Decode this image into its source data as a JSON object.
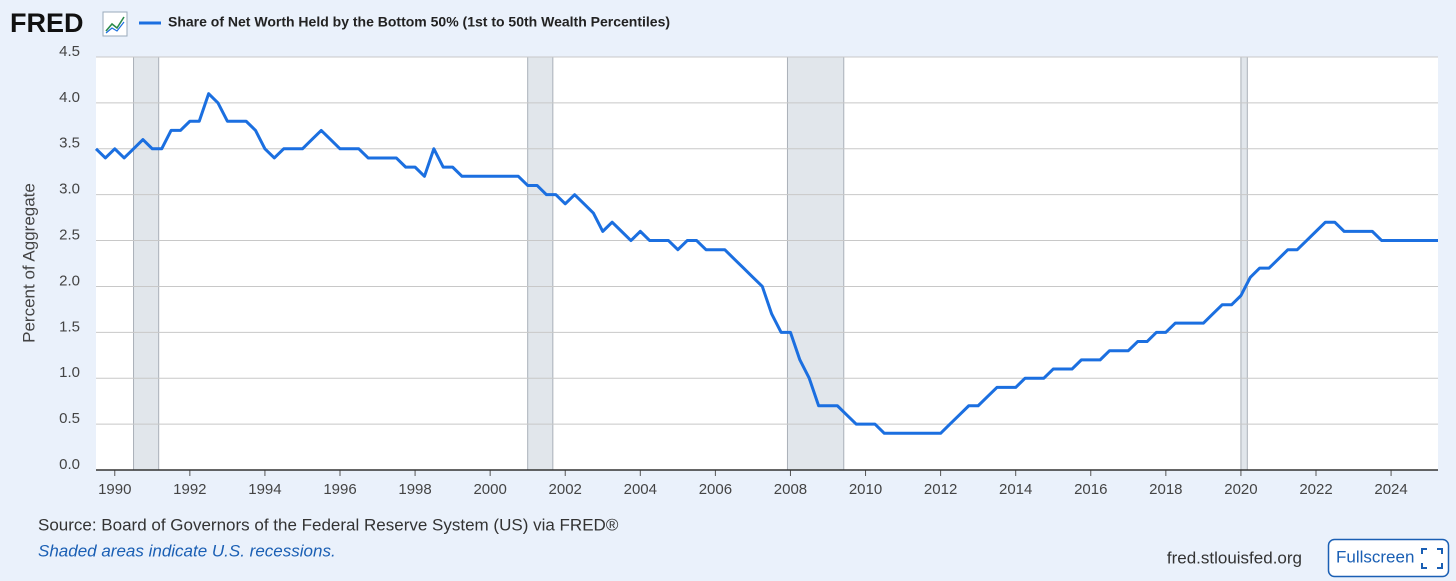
{
  "chart_data": {
    "type": "line",
    "logo": "FRED",
    "ylabel": "Percent of Aggregate",
    "source": "Source: Board of Governors of the Federal Reserve System (US) via FRED®",
    "note": "Shaded areas indicate U.S. recessions.",
    "site": "fred.stlouisfed.org",
    "button": "Fullscreen",
    "x": [
      1989.5,
      1989.75,
      1990,
      1990.25,
      1990.5,
      1990.75,
      1991,
      1991.25,
      1991.5,
      1991.75,
      1992,
      1992.25,
      1992.5,
      1992.75,
      1993,
      1993.25,
      1993.5,
      1993.75,
      1994,
      1994.25,
      1994.5,
      1994.75,
      1995,
      1995.25,
      1995.5,
      1995.75,
      1996,
      1996.25,
      1996.5,
      1996.75,
      1997,
      1997.25,
      1997.5,
      1997.75,
      1998,
      1998.25,
      1998.5,
      1998.75,
      1999,
      1999.25,
      1999.5,
      1999.75,
      2000,
      2000.25,
      2000.5,
      2000.75,
      2001,
      2001.25,
      2001.5,
      2001.75,
      2002,
      2002.25,
      2002.5,
      2002.75,
      2003,
      2003.25,
      2003.5,
      2003.75,
      2004,
      2004.25,
      2004.5,
      2004.75,
      2005,
      2005.25,
      2005.5,
      2005.75,
      2006,
      2006.25,
      2006.5,
      2006.75,
      2007,
      2007.25,
      2007.5,
      2007.75,
      2008,
      2008.25,
      2008.5,
      2008.75,
      2009,
      2009.25,
      2009.5,
      2009.75,
      2010,
      2010.25,
      2010.5,
      2010.75,
      2011,
      2011.25,
      2011.5,
      2011.75,
      2012,
      2012.25,
      2012.5,
      2012.75,
      2013,
      2013.25,
      2013.5,
      2013.75,
      2014,
      2014.25,
      2014.5,
      2014.75,
      2015,
      2015.25,
      2015.5,
      2015.75,
      2016,
      2016.25,
      2016.5,
      2016.75,
      2017,
      2017.25,
      2017.5,
      2017.75,
      2018,
      2018.25,
      2018.5,
      2018.75,
      2019,
      2019.25,
      2019.5,
      2019.75,
      2020,
      2020.25,
      2020.5,
      2020.75,
      2021,
      2021.25,
      2021.5,
      2021.75,
      2022,
      2022.25,
      2022.5,
      2022.75,
      2023,
      2023.25,
      2023.5,
      2023.75,
      2024,
      2024.25,
      2024.5,
      2024.75,
      2025,
      2025.25
    ],
    "series": [
      {
        "name": "Share of Net Worth Held by the Bottom 50% (1st to 50th Wealth Percentiles)",
        "color": "#1b6fe0",
        "values": [
          3.5,
          3.4,
          3.5,
          3.4,
          3.5,
          3.6,
          3.5,
          3.5,
          3.7,
          3.7,
          3.8,
          3.8,
          4.1,
          4.0,
          3.8,
          3.8,
          3.8,
          3.7,
          3.5,
          3.4,
          3.5,
          3.5,
          3.5,
          3.6,
          3.7,
          3.6,
          3.5,
          3.5,
          3.5,
          3.4,
          3.4,
          3.4,
          3.4,
          3.3,
          3.3,
          3.2,
          3.5,
          3.3,
          3.3,
          3.2,
          3.2,
          3.2,
          3.2,
          3.2,
          3.2,
          3.2,
          3.1,
          3.1,
          3.0,
          3.0,
          2.9,
          3.0,
          2.9,
          2.8,
          2.6,
          2.7,
          2.6,
          2.5,
          2.6,
          2.5,
          2.5,
          2.5,
          2.4,
          2.5,
          2.5,
          2.4,
          2.4,
          2.4,
          2.3,
          2.2,
          2.1,
          2.0,
          1.7,
          1.5,
          1.5,
          1.2,
          1.0,
          0.7,
          0.7,
          0.7,
          0.6,
          0.5,
          0.5,
          0.5,
          0.4,
          0.4,
          0.4,
          0.4,
          0.4,
          0.4,
          0.4,
          0.5,
          0.6,
          0.7,
          0.7,
          0.8,
          0.9,
          0.9,
          0.9,
          1.0,
          1.0,
          1.0,
          1.1,
          1.1,
          1.1,
          1.2,
          1.2,
          1.2,
          1.3,
          1.3,
          1.3,
          1.4,
          1.4,
          1.5,
          1.5,
          1.6,
          1.6,
          1.6,
          1.6,
          1.7,
          1.8,
          1.8,
          1.9,
          2.1,
          2.2,
          2.2,
          2.3,
          2.4,
          2.4,
          2.5,
          2.6,
          2.7,
          2.7,
          2.6,
          2.6,
          2.6,
          2.6,
          2.5,
          2.5,
          2.5,
          2.5,
          2.5,
          2.5,
          2.5
        ]
      }
    ],
    "recessions": [
      [
        1990.5,
        1991.17
      ],
      [
        2001.0,
        2001.67
      ],
      [
        2007.92,
        2009.42
      ],
      [
        2020.0,
        2020.17
      ]
    ],
    "recession_color": "#e1e6eb",
    "xlim": [
      1989.5,
      2025.25
    ],
    "xticks": [
      1990,
      1992,
      1994,
      1996,
      1998,
      2000,
      2002,
      2004,
      2006,
      2008,
      2010,
      2012,
      2014,
      2016,
      2018,
      2020,
      2022,
      2024
    ],
    "ylim": [
      0,
      4.5
    ],
    "yticks": [
      {
        "value": 0,
        "label": "0.0"
      },
      0.5,
      {
        "value": 1,
        "label": "1.0"
      },
      1.5,
      {
        "value": 2,
        "label": "2.0"
      },
      2.5,
      {
        "value": 3,
        "label": "3.0"
      },
      3.5,
      {
        "value": 4,
        "label": "4.0"
      },
      4.5
    ],
    "grid": true
  }
}
